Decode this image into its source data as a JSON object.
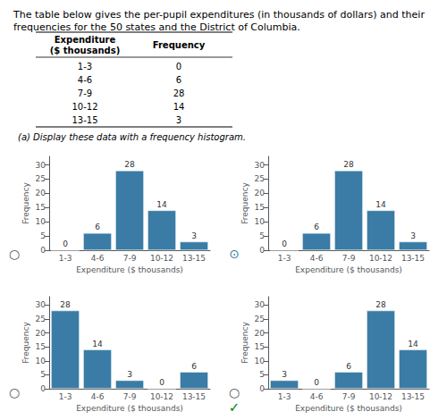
{
  "chart_data": [
    {
      "type": "table",
      "title": "The table below gives the per-pupil expenditures (in thousands of dollars) and their frequencies for the 50 states and the District of Columbia.",
      "columns": [
        "Expenditure\n($ thousands)",
        "Frequency"
      ],
      "rows": [
        [
          "1-3",
          "0"
        ],
        [
          "4-6",
          "6"
        ],
        [
          "7-9",
          "28"
        ],
        [
          "10-12",
          "14"
        ],
        [
          "13-15",
          "3"
        ]
      ],
      "annotations": [
        "(a) Display these data with a frequency histogram."
      ]
    },
    {
      "type": "bar",
      "categories": [
        "1-3",
        "4-6",
        "7-9",
        "10-12",
        "13-15"
      ],
      "values": [
        0,
        6,
        28,
        14,
        3
      ],
      "color": "#3a7ca5",
      "xlabel": "Expenditure ($ thousands)",
      "ylabel": "Frequency",
      "ylim": [
        0,
        33
      ],
      "yticks": [
        0,
        5,
        10,
        15,
        20,
        25,
        30
      ],
      "data_labels": true,
      "grid": false,
      "annotations": [
        {
          "text": "○",
          "color": "#555555"
        }
      ]
    },
    {
      "type": "bar",
      "categories": [
        "1-3",
        "4-6",
        "7-9",
        "10-12",
        "13-15"
      ],
      "values": [
        0,
        6,
        28,
        14,
        3
      ],
      "color": "#3a7ca5",
      "xlabel": "Expenditure ($ thousands)",
      "ylabel": "Frequency",
      "ylim": [
        0,
        33
      ],
      "yticks": [
        0,
        5,
        10,
        15,
        20,
        25,
        30
      ],
      "data_labels": true,
      "grid": false,
      "annotations": [
        {
          "text": "⊙",
          "color": "#3a7ca5"
        }
      ]
    },
    {
      "type": "bar",
      "categories": [
        "1-3",
        "4-6",
        "7-9",
        "10-12",
        "13-15"
      ],
      "values": [
        28,
        14,
        3,
        0,
        6
      ],
      "color": "#3a7ca5",
      "xlabel": "Expenditure ($ thousands)",
      "ylabel": "Frequency",
      "ylim": [
        0,
        33
      ],
      "yticks": [
        0,
        5,
        10,
        15,
        20,
        25,
        30
      ],
      "data_labels": true,
      "grid": false,
      "annotations": [
        {
          "text": "○",
          "color": "#555555"
        }
      ]
    },
    {
      "type": "bar",
      "categories": [
        "1-3",
        "4-6",
        "7-9",
        "10-12",
        "13-15"
      ],
      "values": [
        3,
        0,
        6,
        28,
        14
      ],
      "color": "#3a7ca5",
      "xlabel": "Expenditure ($ thousands)",
      "ylabel": "Frequency",
      "ylim": [
        0,
        33
      ],
      "yticks": [
        0,
        5,
        10,
        15,
        20,
        25,
        30
      ],
      "data_labels": true,
      "grid": false,
      "annotations": [
        {
          "text": "○",
          "color": "#555555"
        },
        {
          "text": "✓",
          "color": "green"
        }
      ]
    }
  ]
}
